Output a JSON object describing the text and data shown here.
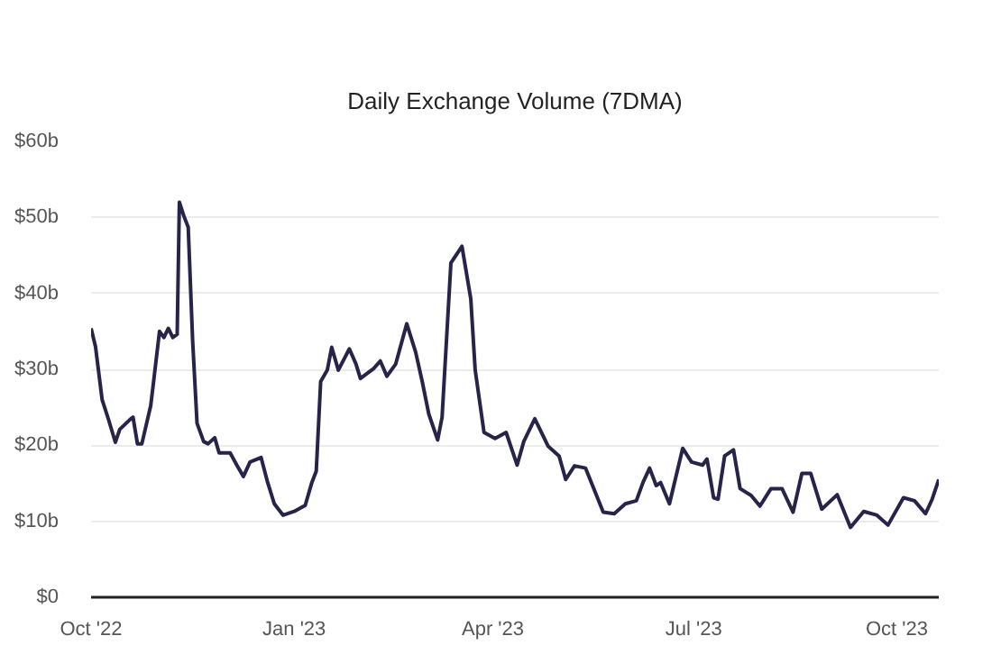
{
  "chart_data": {
    "type": "line",
    "title": "Daily Exchange Volume (7DMA)",
    "x": [
      "2022-10-01",
      "2022-10-03",
      "2022-10-06",
      "2022-10-09",
      "2022-10-12",
      "2022-10-14",
      "2022-10-19",
      "2022-10-20",
      "2022-10-22",
      "2022-10-24",
      "2022-10-28",
      "2022-10-29",
      "2022-11-01",
      "2022-11-03",
      "2022-11-05",
      "2022-11-07",
      "2022-11-09",
      "2022-11-10",
      "2022-11-12",
      "2022-11-14",
      "2022-11-16",
      "2022-11-18",
      "2022-11-21",
      "2022-11-23",
      "2022-11-26",
      "2022-11-28",
      "2022-12-03",
      "2022-12-06",
      "2022-12-09",
      "2022-12-12",
      "2022-12-17",
      "2022-12-20",
      "2022-12-23",
      "2022-12-27",
      "2023-01-01",
      "2023-01-06",
      "2023-01-09",
      "2023-01-11",
      "2023-01-13",
      "2023-01-16",
      "2023-01-18",
      "2023-01-21",
      "2023-01-26",
      "2023-01-29",
      "2023-01-31",
      "2023-02-06",
      "2023-02-09",
      "2023-02-12",
      "2023-02-16",
      "2023-02-21",
      "2023-02-25",
      "2023-02-28",
      "2023-03-03",
      "2023-03-07",
      "2023-03-09",
      "2023-03-13",
      "2023-03-18",
      "2023-03-22",
      "2023-03-24",
      "2023-03-28",
      "2023-04-02",
      "2023-04-07",
      "2023-04-12",
      "2023-04-15",
      "2023-04-20",
      "2023-04-26",
      "2023-05-01",
      "2023-05-04",
      "2023-05-08",
      "2023-05-13",
      "2023-05-21",
      "2023-05-26",
      "2023-05-31",
      "2023-06-05",
      "2023-06-08",
      "2023-06-11",
      "2023-06-14",
      "2023-06-16",
      "2023-06-20",
      "2023-06-26",
      "2023-06-30",
      "2023-07-05",
      "2023-07-07",
      "2023-07-10",
      "2023-07-12",
      "2023-07-15",
      "2023-07-19",
      "2023-07-22",
      "2023-07-27",
      "2023-07-31",
      "2023-08-05",
      "2023-08-10",
      "2023-08-15",
      "2023-08-19",
      "2023-08-23",
      "2023-08-28",
      "2023-09-04",
      "2023-09-10",
      "2023-09-16",
      "2023-09-22",
      "2023-09-27",
      "2023-10-04",
      "2023-10-09",
      "2023-10-14",
      "2023-10-17",
      "2023-10-20"
    ],
    "series": [
      {
        "color": "#27244a",
        "values": [
          35.4,
          33,
          26,
          23.3,
          20.4,
          22.1,
          23.5,
          23.7,
          20.2,
          20.2,
          25.2,
          27.6,
          35,
          34.2,
          35.4,
          34.2,
          34.6,
          52,
          50.2,
          48.7,
          33.8,
          22.9,
          20.5,
          20.2,
          21,
          19,
          19,
          17.4,
          15.9,
          17.8,
          18.4,
          15.1,
          12.3,
          10.8,
          11.3,
          12.1,
          15.1,
          16.6,
          28.4,
          29.9,
          32.9,
          29.9,
          32.7,
          30.7,
          28.8,
          30.1,
          31.1,
          29.1,
          30.7,
          36,
          32.3,
          28.4,
          24.1,
          20.7,
          23.7,
          44,
          46.2,
          39.3,
          29.9,
          21.7,
          20.9,
          21.7,
          17.4,
          20.5,
          23.5,
          19.9,
          18.6,
          15.5,
          17.3,
          17,
          11.2,
          11,
          12.3,
          12.7,
          15.1,
          17,
          14.7,
          15.1,
          12.3,
          19.6,
          17.8,
          17.4,
          18.2,
          13.1,
          12.9,
          18.6,
          19.4,
          14.3,
          13.4,
          12,
          14.3,
          14.3,
          11.2,
          16.3,
          16.3,
          11.6,
          13.5,
          9.2,
          11.3,
          10.8,
          9.5,
          13.1,
          12.7,
          11,
          12.9,
          15.5
        ]
      }
    ],
    "xlim": [
      "2022-10-01",
      "2023-10-20"
    ],
    "xticks": [
      {
        "value": "2022-10-01",
        "label": "Oct '22"
      },
      {
        "value": "2023-01-01",
        "label": "Jan '23"
      },
      {
        "value": "2023-04-01",
        "label": "Apr '23"
      },
      {
        "value": "2023-07-01",
        "label": "Jul '23"
      },
      {
        "value": "2023-10-01",
        "label": "Oct '23"
      }
    ],
    "ylim": [
      0,
      60
    ],
    "yticks": [
      {
        "value": 0,
        "label": "$0"
      },
      {
        "value": 10,
        "label": "$10b"
      },
      {
        "value": 20,
        "label": "$20b"
      },
      {
        "value": 30,
        "label": "$30b"
      },
      {
        "value": 40,
        "label": "$40b"
      },
      {
        "value": 50,
        "label": "$50b"
      },
      {
        "value": 60,
        "label": "$60b"
      }
    ],
    "grid": "y",
    "marker": "none",
    "line_style": "solid"
  }
}
